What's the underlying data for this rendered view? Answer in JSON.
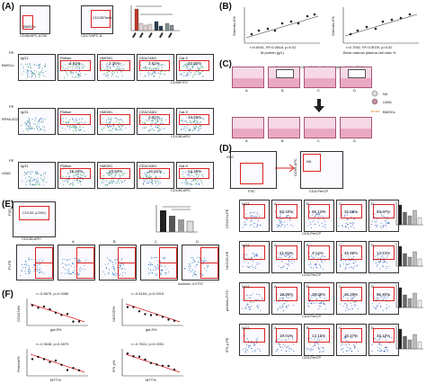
{
  "panels": {
    "A": "(A)",
    "B": "(B)",
    "C": "(C)",
    "D": "(D)",
    "E": "(E)",
    "F": "(F)"
  },
  "panelA": {
    "top": {
      "bmscs": "BMSCs",
      "cd138": "CD138°bela",
      "cd45": "CD45/APC-A700",
      "cd17": "CD17/APC-A"
    },
    "rows": [
      {
        "label": "BMSCs",
        "values": [
          "3.84%",
          "3.36%",
          "3.51%",
          "20.80%"
        ]
      },
      {
        "label": "RPMI-8226",
        "values": [
          "",
          "",
          "2.31%",
          "16.26%"
        ]
      },
      {
        "label": "U266",
        "values": [
          "15.10%",
          "19.54%",
          "16.01%",
          "14.26%"
        ]
      }
    ],
    "cols": [
      "IgG1",
      "Ptdlser",
      "HMGB1",
      "CEACAM1",
      "Gal-9"
    ],
    "pe": "PE",
    "axes": [
      "CD90FITC",
      "CD138-APC",
      "CD138-APC"
    ],
    "bar_colors": [
      "#c0392b",
      "#2c3e50",
      "#7f8c8d"
    ]
  },
  "panelB": {
    "ylabel": "Galectin-9%",
    "left": {
      "xlabel": "M protein (g/L)",
      "stat": "r=0.6941, R²=0.4818, p=0.02"
    },
    "right": {
      "xlabel": "Bone marrow plasma cell ratio %",
      "stat": "r=0.7092, R²=0.5029, p=0.02"
    }
  },
  "panelC": {
    "top_insert": "Gal-9 inhibitor\n(0.5h, 25 C)",
    "legend": [
      "NK",
      "U266",
      "BMSCs"
    ],
    "wells": [
      "A",
      "B",
      "C",
      "D"
    ]
  },
  "panelD": {
    "fsc": "FSC",
    "ssc": "SSC",
    "nk": "NK",
    "cd3": "CD3-PerCP",
    "cd56": "CD56-APC",
    "cols": [
      "IgG1",
      "A",
      "B",
      "C",
      "D"
    ],
    "rows": [
      {
        "ylabel": "CD107a-PE",
        "values": [
          "",
          "83.40%",
          "36.12%",
          "32.25%",
          "53.47%"
        ]
      },
      {
        "ylabel": "NKG2D-PE",
        "values": [
          "",
          "21.01%",
          "4.14%",
          "45.90%",
          "13.74%"
        ]
      },
      {
        "ylabel": "perforin-FITC",
        "values": [
          "",
          "19.95%",
          "39.35%",
          "15.25%",
          "56.40%"
        ]
      },
      {
        "ylabel": "IFN-γ-PE",
        "values": [
          "",
          "10.01%",
          "13.15%",
          "13.27%",
          "45.10%"
        ]
      }
    ],
    "xlabel": "CD3-PerCP"
  },
  "panelE": {
    "gate": "CD138 (U266)",
    "xlabel": "CD138-APC",
    "ylabel": "FSC",
    "cols": [
      "A",
      "B",
      "C",
      "D"
    ],
    "bottom_x": "Annexin V-FITC",
    "bottom_y": "PI-PE"
  },
  "panelF": {
    "plots": [
      {
        "stat": "r=-0.5875, p=0.0056",
        "xlabel": "gal-9%",
        "ylabel": "CD107a%"
      },
      {
        "stat": "r=-0.6184, p=0.0019",
        "xlabel": "gal-9%",
        "ylabel": "NKG2D%"
      },
      {
        "stat": "r=-0.3848, p=0.4879",
        "xlabel": "MTT%",
        "ylabel": "Perforin%"
      },
      {
        "stat": "r=-0.7841, p=0.0051",
        "xlabel": "MTT%",
        "ylabel": "IFN-γ%"
      }
    ]
  }
}
